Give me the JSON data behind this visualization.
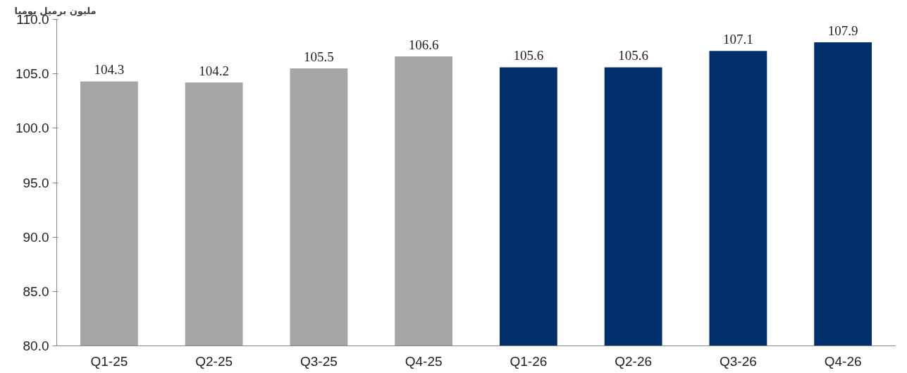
{
  "chart_data": {
    "type": "bar",
    "ylabel": "مليون برميل يوميا",
    "categories": [
      "Q1-25",
      "Q2-25",
      "Q3-25",
      "Q4-25",
      "Q1-26",
      "Q2-26",
      "Q3-26",
      "Q4-26"
    ],
    "values": [
      104.3,
      104.2,
      105.5,
      106.6,
      105.6,
      105.6,
      107.1,
      107.9
    ],
    "colors": [
      "#a6a6a6",
      "#a6a6a6",
      "#a6a6a6",
      "#a6a6a6",
      "#002f6c",
      "#002f6c",
      "#002f6c",
      "#002f6c"
    ],
    "ylim": [
      80,
      110
    ],
    "yticks": [
      {
        "value": 80,
        "label": "80.0"
      },
      {
        "value": 85,
        "label": "85.0"
      },
      {
        "value": 90,
        "label": "90.0"
      },
      {
        "value": 95,
        "label": "95.0"
      },
      {
        "value": 100,
        "label": "100.0"
      },
      {
        "value": 105,
        "label": "105.0"
      },
      {
        "value": 110,
        "label": "110.0"
      }
    ],
    "data_labels": true,
    "grid": false
  }
}
